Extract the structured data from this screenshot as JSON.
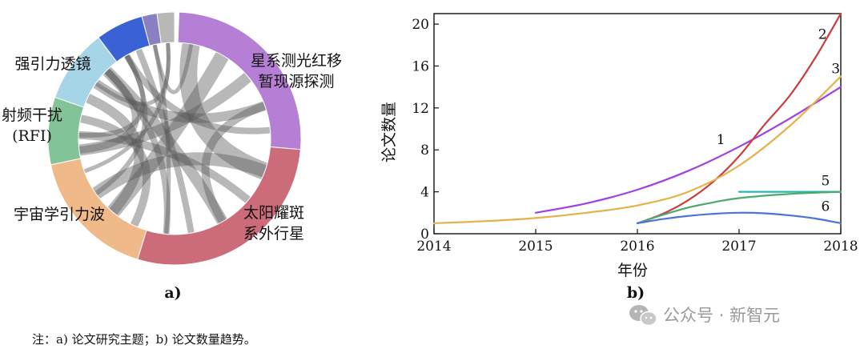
{
  "chart_data": [
    {
      "type": "chord",
      "caption": "a)",
      "segments": [
        {
          "label": "星系测光红移\n暂现源探测",
          "color": "#b57fd6",
          "start_deg": 2,
          "end_deg": 95
        },
        {
          "label": "太阳耀斑\n系外行星",
          "color": "#cc6b7a",
          "start_deg": 95,
          "end_deg": 197
        },
        {
          "label": "宇宙学引力波",
          "color": "#f0b98a",
          "start_deg": 197,
          "end_deg": 258
        },
        {
          "label": "射频干扰\n(RFI)",
          "color": "#82c497",
          "start_deg": 258,
          "end_deg": 289
        },
        {
          "label": "强引力透镜",
          "color": "#a6d5e8",
          "start_deg": 289,
          "end_deg": 323
        },
        {
          "label": "",
          "color": "#3a62d4",
          "start_deg": 323,
          "end_deg": 345
        },
        {
          "label": "",
          "color": "#8a7fc0",
          "start_deg": 345,
          "end_deg": 352
        },
        {
          "label": "",
          "color": "#b8b8b8",
          "start_deg": 352,
          "end_deg": 360
        }
      ],
      "links_color": "#555555"
    },
    {
      "type": "line",
      "caption": "b)",
      "xlabel": "年份",
      "ylabel": "论文数量",
      "xlim": [
        2014,
        2018
      ],
      "ylim": [
        0,
        21
      ],
      "xticks": [
        "2014",
        "2015",
        "2016",
        "2017",
        "2018"
      ],
      "yticks": [
        "0",
        "4",
        "8",
        "12",
        "16",
        "20"
      ],
      "series": [
        {
          "name": "1",
          "color": "#a040e0",
          "x": [
            2015,
            2015.5,
            2016,
            2016.5,
            2017,
            2017.5,
            2018
          ],
          "y": [
            2.0,
            2.9,
            4.2,
            6.0,
            8.3,
            11.0,
            14.0
          ]
        },
        {
          "name": "2",
          "color": "#cc3d3d",
          "x": [
            2016,
            2016.25,
            2016.5,
            2016.75,
            2017,
            2017.25,
            2017.5,
            2017.75,
            2018
          ],
          "y": [
            1.0,
            1.9,
            3.2,
            5.0,
            7.4,
            10.4,
            13.2,
            16.8,
            21.0
          ]
        },
        {
          "name": "3",
          "color": "#e4b24a",
          "x": [
            2014,
            2014.5,
            2015,
            2015.5,
            2016,
            2016.5,
            2017,
            2017.5,
            2018
          ],
          "y": [
            1.0,
            1.2,
            1.5,
            2.0,
            2.7,
            4.0,
            6.5,
            10.3,
            15.0
          ]
        },
        {
          "name": "5",
          "color": "#2ab5b5",
          "x": [
            2017,
            2018
          ],
          "y": [
            4.0,
            4.0
          ]
        },
        {
          "name": "",
          "color": "#4daa6e",
          "x": [
            2016,
            2016.25,
            2016.5,
            2016.75,
            2017,
            2017.5,
            2018
          ],
          "y": [
            1.0,
            1.8,
            2.5,
            3.0,
            3.4,
            3.8,
            4.0
          ]
        },
        {
          "name": "6",
          "color": "#4f72d8",
          "x": [
            2016,
            2016.25,
            2016.5,
            2016.75,
            2017,
            2017.25,
            2017.5,
            2017.75,
            2018
          ],
          "y": [
            1.0,
            1.4,
            1.7,
            1.9,
            2.0,
            1.95,
            1.75,
            1.45,
            1.0
          ]
        }
      ],
      "grid": false,
      "legend": "none"
    }
  ],
  "note": "注：a) 论文研究主题；b) 论文数量趋势。",
  "watermark": "公众号 · 新智元"
}
